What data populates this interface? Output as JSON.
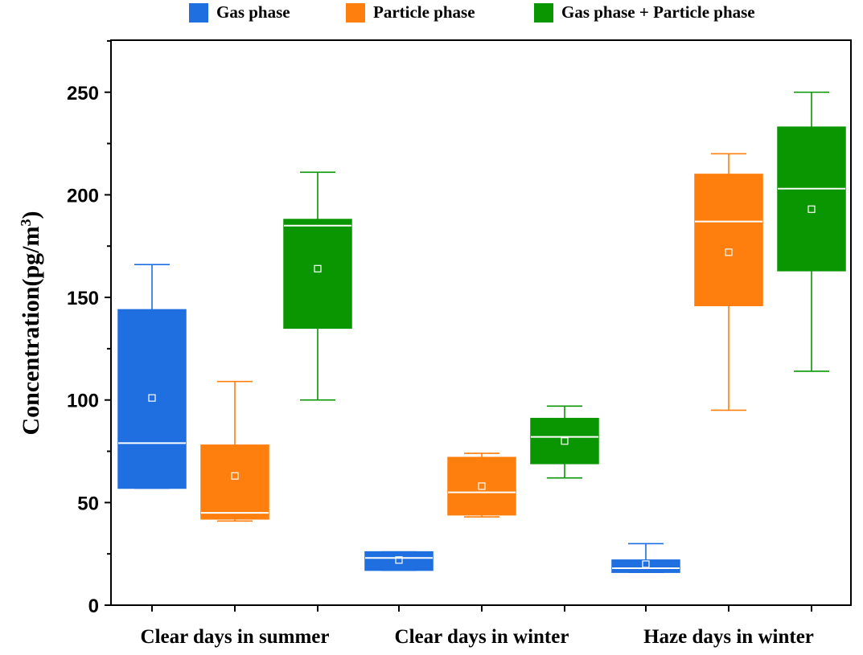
{
  "chart_data": {
    "type": "box",
    "ylabel": "Concentration(pg/m",
    "ylabel_sup": "3",
    "ylabel_close": ")",
    "ylim": [
      0,
      275
    ],
    "yticks": [
      0,
      50,
      100,
      150,
      200,
      250
    ],
    "categories": [
      "Clear days in summer",
      "Clear days in winter",
      "Haze days in winter"
    ],
    "legend_position": "top",
    "grid": false,
    "series": [
      {
        "name": "Gas phase",
        "color": "#1f6fe0",
        "boxes": [
          {
            "whisker_low": 57,
            "q1": 57,
            "median": 79,
            "q3": 144,
            "whisker_high": 166,
            "mean": 101
          },
          {
            "whisker_low": 17,
            "q1": 17,
            "median": 23,
            "q3": 26,
            "whisker_high": 26,
            "mean": 22
          },
          {
            "whisker_low": 16,
            "q1": 16,
            "median": 18,
            "q3": 22,
            "whisker_high": 30,
            "mean": 20
          }
        ]
      },
      {
        "name": "Particle phase",
        "color": "#ff7f0e",
        "boxes": [
          {
            "whisker_low": 41,
            "q1": 42,
            "median": 45,
            "q3": 78,
            "whisker_high": 109,
            "mean": 63
          },
          {
            "whisker_low": 43,
            "q1": 44,
            "median": 55,
            "q3": 72,
            "whisker_high": 74,
            "mean": 58
          },
          {
            "whisker_low": 95,
            "q1": 146,
            "median": 187,
            "q3": 210,
            "whisker_high": 220,
            "mean": 172
          }
        ]
      },
      {
        "name": "Gas phase + Particle phase",
        "color": "#0a9600",
        "boxes": [
          {
            "whisker_low": 100,
            "q1": 135,
            "median": 185,
            "q3": 188,
            "whisker_high": 211,
            "mean": 164
          },
          {
            "whisker_low": 62,
            "q1": 69,
            "median": 82,
            "q3": 91,
            "whisker_high": 97,
            "mean": 80
          },
          {
            "whisker_low": 114,
            "q1": 163,
            "median": 203,
            "q3": 233,
            "whisker_high": 250,
            "mean": 193
          }
        ]
      }
    ]
  }
}
